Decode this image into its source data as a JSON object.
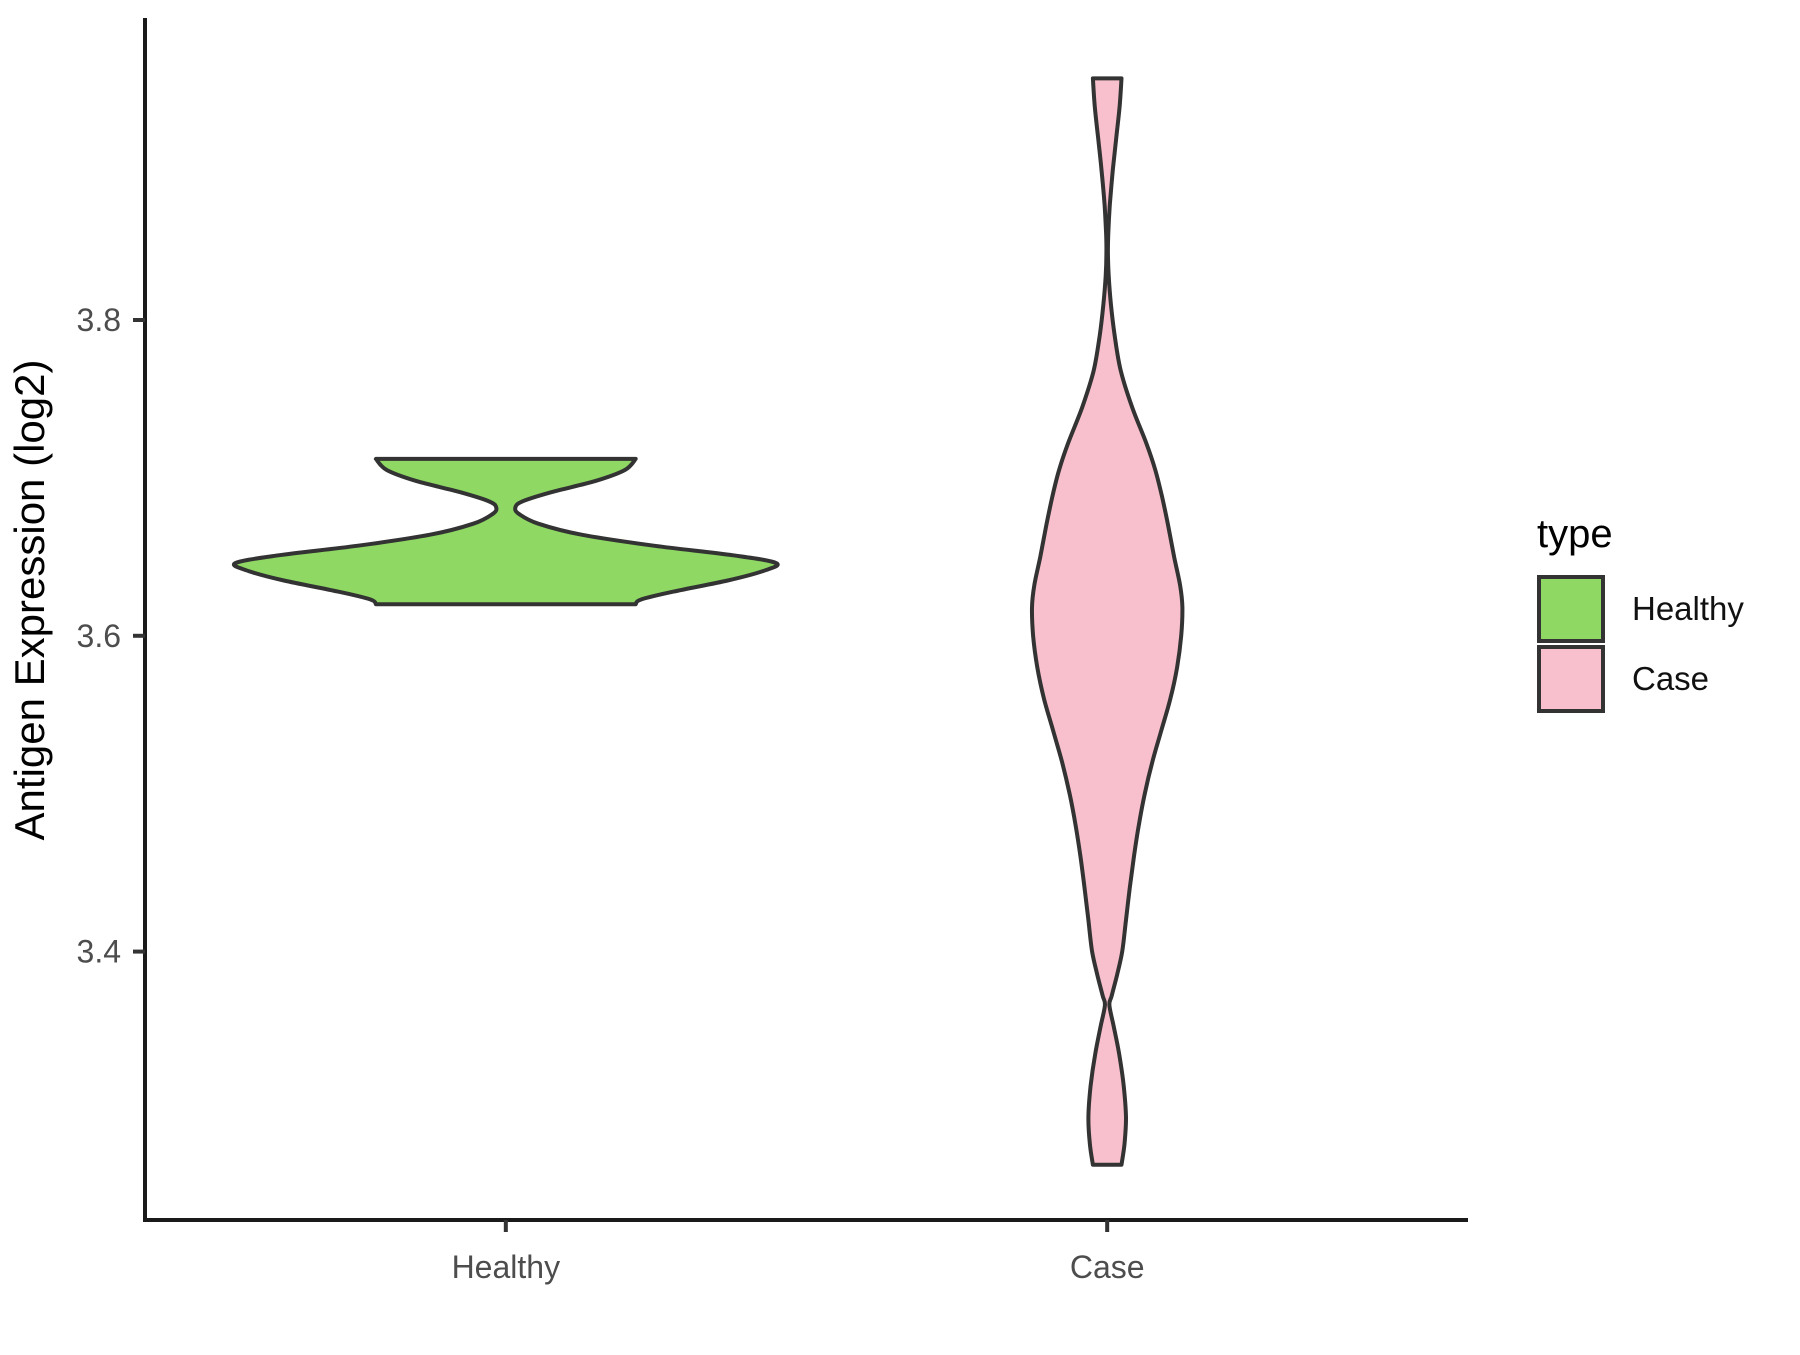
{
  "chart_data": {
    "type": "violin",
    "title": "",
    "xlabel": "",
    "ylabel": "Antigen Expression (log2)",
    "categories": [
      "Healthy",
      "Case"
    ],
    "x_tick_labels": [
      "Healthy",
      "Case"
    ],
    "y_ticks": [
      3.4,
      3.6,
      3.8
    ],
    "y_tick_labels": [
      "3.4",
      "3.6",
      "3.8"
    ],
    "ylim": [
      3.23,
      3.99
    ],
    "grid": false,
    "legend": {
      "title": "type",
      "position": "right",
      "entries": [
        {
          "label": "Healthy",
          "color": "#8ed863"
        },
        {
          "label": "Case",
          "color": "#f8c0cc"
        }
      ]
    },
    "series": [
      {
        "name": "Healthy",
        "fill": "#8ed863",
        "outline": "#333333",
        "data_range": [
          3.62,
          3.712
        ],
        "max_halfwidth_units": 0.45,
        "profile": [
          [
            3.712,
            0.48
          ],
          [
            3.705,
            0.44
          ],
          [
            3.698,
            0.33
          ],
          [
            3.691,
            0.17
          ],
          [
            3.685,
            0.06
          ],
          [
            3.681,
            0.035
          ],
          [
            3.677,
            0.05
          ],
          [
            3.671,
            0.12
          ],
          [
            3.664,
            0.28
          ],
          [
            3.657,
            0.55
          ],
          [
            3.651,
            0.84
          ],
          [
            3.646,
            1.0
          ],
          [
            3.641,
            0.95
          ],
          [
            3.635,
            0.82
          ],
          [
            3.628,
            0.62
          ],
          [
            3.623,
            0.5
          ],
          [
            3.62,
            0.48
          ]
        ]
      },
      {
        "name": "Case",
        "fill": "#f8c0cc",
        "outline": "#333333",
        "data_range": [
          3.265,
          3.953
        ],
        "max_halfwidth_units": 0.125,
        "profile": [
          [
            3.953,
            0.19
          ],
          [
            3.935,
            0.165
          ],
          [
            3.915,
            0.12
          ],
          [
            3.895,
            0.075
          ],
          [
            3.873,
            0.035
          ],
          [
            3.855,
            0.015
          ],
          [
            3.843,
            0.01
          ],
          [
            3.828,
            0.02
          ],
          [
            3.81,
            0.05
          ],
          [
            3.79,
            0.1
          ],
          [
            3.768,
            0.18
          ],
          [
            3.745,
            0.33
          ],
          [
            3.722,
            0.52
          ],
          [
            3.705,
            0.64
          ],
          [
            3.688,
            0.73
          ],
          [
            3.67,
            0.81
          ],
          [
            3.65,
            0.89
          ],
          [
            3.632,
            0.97
          ],
          [
            3.618,
            1.0
          ],
          [
            3.6,
            0.985
          ],
          [
            3.58,
            0.93
          ],
          [
            3.56,
            0.84
          ],
          [
            3.54,
            0.72
          ],
          [
            3.52,
            0.6
          ],
          [
            3.5,
            0.5
          ],
          [
            3.48,
            0.42
          ],
          [
            3.46,
            0.355
          ],
          [
            3.44,
            0.3
          ],
          [
            3.42,
            0.25
          ],
          [
            3.4,
            0.2
          ],
          [
            3.385,
            0.13
          ],
          [
            3.372,
            0.06
          ],
          [
            3.366,
            0.03
          ],
          [
            3.352,
            0.09
          ],
          [
            3.335,
            0.16
          ],
          [
            3.315,
            0.22
          ],
          [
            3.295,
            0.25
          ],
          [
            3.278,
            0.23
          ],
          [
            3.265,
            0.19
          ]
        ]
      }
    ]
  }
}
